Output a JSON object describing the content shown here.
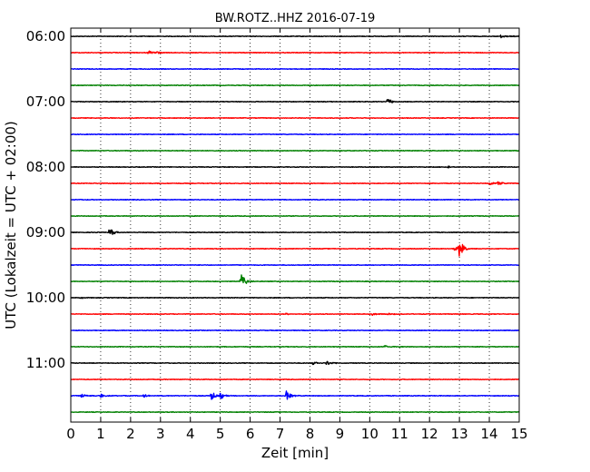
{
  "chart_data": {
    "type": "line",
    "title": "BW.ROTZ..HHZ 2016-07-19",
    "xlabel": "Zeit  [min]",
    "ylabel": "UTC (Lokalzeit = UTC + 02:00)",
    "xlim": [
      0,
      15
    ],
    "x_ticks": [
      0,
      1,
      2,
      3,
      4,
      5,
      6,
      7,
      8,
      9,
      10,
      11,
      12,
      13,
      14,
      15
    ],
    "y_tick_labels": [
      "06:00",
      "07:00",
      "08:00",
      "09:00",
      "10:00",
      "11:00"
    ],
    "minutes_per_trace": 15,
    "grid": "vertical dotted",
    "trace_colors": [
      "#000000",
      "#ff0000",
      "#0000ff",
      "#008000"
    ],
    "traces": [
      {
        "start": "06:00",
        "events": [
          {
            "t": 14.4,
            "amp": 0.35
          },
          {
            "t": 14.7,
            "amp": 0.25
          }
        ]
      },
      {
        "start": "06:15",
        "events": [
          {
            "t": 2.6,
            "amp": 0.35
          },
          {
            "t": 2.85,
            "amp": 0.3
          }
        ]
      },
      {
        "start": "06:30",
        "events": []
      },
      {
        "start": "06:45",
        "events": []
      },
      {
        "start": "07:00",
        "events": [
          {
            "t": 10.6,
            "amp": 0.6
          }
        ]
      },
      {
        "start": "07:15",
        "events": []
      },
      {
        "start": "07:30",
        "events": []
      },
      {
        "start": "07:45",
        "events": []
      },
      {
        "start": "08:00",
        "events": [
          {
            "t": 12.6,
            "amp": 0.3
          }
        ]
      },
      {
        "start": "08:15",
        "events": [
          {
            "t": 14.0,
            "amp": 0.45
          },
          {
            "t": 14.3,
            "amp": 0.5
          }
        ]
      },
      {
        "start": "08:30",
        "events": []
      },
      {
        "start": "08:45",
        "events": []
      },
      {
        "start": "09:00",
        "events": [
          {
            "t": 1.3,
            "amp": 0.9
          }
        ]
      },
      {
        "start": "09:15",
        "events": [
          {
            "t": 12.85,
            "amp": 0.5
          },
          {
            "t": 13.0,
            "amp": 1.9
          }
        ]
      },
      {
        "start": "09:30",
        "events": []
      },
      {
        "start": "09:45",
        "events": [
          {
            "t": 5.7,
            "amp": 1.5
          }
        ]
      },
      {
        "start": "10:00",
        "events": [
          {
            "t": 0.3,
            "amp": 0.2
          }
        ]
      },
      {
        "start": "10:15",
        "events": [
          {
            "t": 7.2,
            "amp": 0.2
          },
          {
            "t": 10.1,
            "amp": 0.3
          },
          {
            "t": 10.6,
            "amp": 0.25
          }
        ]
      },
      {
        "start": "10:30",
        "events": []
      },
      {
        "start": "10:45",
        "events": [
          {
            "t": 10.5,
            "amp": 0.35
          }
        ]
      },
      {
        "start": "11:00",
        "events": [
          {
            "t": 8.1,
            "amp": 0.3
          },
          {
            "t": 8.55,
            "amp": 0.55
          }
        ]
      },
      {
        "start": "11:15",
        "events": []
      },
      {
        "start": "11:30",
        "events": [
          {
            "t": 0.35,
            "amp": 0.3
          },
          {
            "t": 1.0,
            "amp": 0.3
          },
          {
            "t": 2.45,
            "amp": 0.3
          },
          {
            "t": 4.7,
            "amp": 0.9
          },
          {
            "t": 5.0,
            "amp": 0.7
          },
          {
            "t": 7.2,
            "amp": 1.0
          }
        ]
      },
      {
        "start": "11:45",
        "events": []
      }
    ]
  }
}
